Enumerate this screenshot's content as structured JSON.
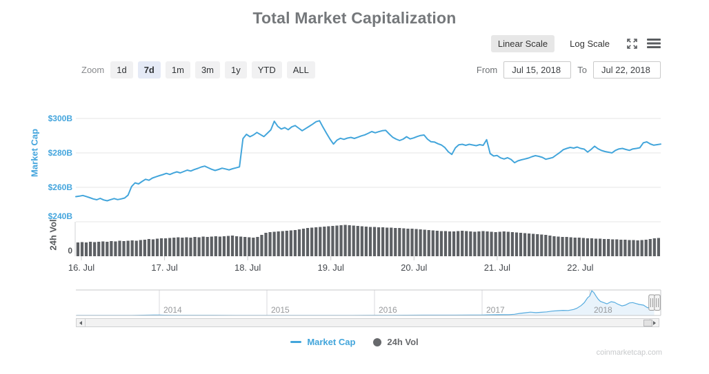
{
  "title": "Total Market Capitalization",
  "toolbar": {
    "linear_scale": "Linear Scale",
    "log_scale": "Log Scale"
  },
  "zoom_controls": {
    "label": "Zoom",
    "buttons": [
      {
        "label": "1d",
        "selected": false
      },
      {
        "label": "7d",
        "selected": true
      },
      {
        "label": "1m",
        "selected": false
      },
      {
        "label": "3m",
        "selected": false
      },
      {
        "label": "1y",
        "selected": false
      },
      {
        "label": "YTD",
        "selected": false
      },
      {
        "label": "ALL",
        "selected": false
      }
    ]
  },
  "range_selector": {
    "from_label": "From",
    "from_value": "Jul 15, 2018",
    "to_label": "To",
    "to_value": "Jul 22, 2018"
  },
  "legend": [
    {
      "label": "Market Cap",
      "color": "#42a5db",
      "marker": "line"
    },
    {
      "label": "24h Vol",
      "color": "#67696c",
      "marker": "circle"
    }
  ],
  "watermark": "coinmarketcap.com",
  "chart_data": {
    "type": "line",
    "title": "Total Market Capitalization",
    "x_ticks": [
      "16. Jul",
      "17. Jul",
      "18. Jul",
      "19. Jul",
      "20. Jul",
      "21. Jul",
      "22. Jul"
    ],
    "panes": [
      {
        "type": "line",
        "name": "Market Cap",
        "ylabel": "Market Cap",
        "color": "#42a5db",
        "unit": "$B",
        "ylim": [
          240,
          305
        ],
        "y_ticks": [
          {
            "label": "$300B",
            "value": 300
          },
          {
            "label": "$280B",
            "value": 280
          },
          {
            "label": "$260B",
            "value": 260
          },
          {
            "label": "$240B",
            "value": 240
          }
        ],
        "points_per_day": 24,
        "values": [
          254.6,
          254.9,
          255.3,
          254.7,
          254.0,
          253.3,
          252.8,
          253.6,
          252.7,
          252.2,
          252.9,
          253.5,
          252.9,
          253.3,
          253.8,
          255.5,
          260.5,
          262.6,
          262.0,
          263.4,
          264.7,
          264.1,
          265.4,
          266.1,
          266.8,
          267.4,
          268.1,
          267.5,
          268.3,
          269.0,
          268.4,
          269.2,
          270.0,
          269.5,
          270.3,
          271.0,
          271.8,
          272.3,
          271.4,
          270.5,
          269.8,
          270.4,
          271.1,
          270.7,
          270.1,
          270.8,
          271.3,
          271.9,
          288.3,
          290.8,
          289.4,
          290.4,
          291.9,
          290.7,
          289.5,
          291.4,
          293.4,
          298.4,
          295.4,
          293.9,
          294.7,
          293.5,
          295.1,
          295.9,
          294.4,
          292.9,
          294.1,
          295.4,
          296.7,
          298.1,
          298.7,
          294.9,
          291.4,
          288.0,
          285.1,
          287.4,
          288.5,
          287.9,
          288.6,
          289.0,
          288.4,
          289.1,
          289.9,
          290.5,
          291.4,
          292.4,
          291.7,
          292.3,
          292.9,
          293.1,
          291.0,
          289.1,
          288.0,
          287.2,
          288.0,
          289.4,
          288.1,
          288.7,
          289.5,
          290.1,
          290.4,
          288.0,
          286.5,
          286.3,
          285.3,
          284.6,
          283.1,
          280.6,
          279.1,
          282.9,
          284.7,
          285.0,
          284.4,
          285.0,
          284.6,
          284.2,
          284.8,
          284.4,
          287.7,
          279.6,
          278.2,
          278.5,
          277.1,
          276.5,
          277.2,
          276.2,
          274.3,
          275.4,
          276.0,
          276.5,
          277.0,
          277.8,
          278.4,
          278.0,
          277.4,
          276.3,
          276.8,
          277.3,
          278.8,
          280.2,
          281.9,
          282.6,
          283.2,
          282.8,
          283.4,
          282.6,
          282.2,
          280.5,
          282.0,
          283.9,
          282.4,
          281.4,
          280.8,
          280.4,
          280.0,
          281.5,
          282.3,
          282.6,
          282.0,
          281.5,
          282.3,
          282.6,
          283.0,
          285.9,
          286.4,
          285.2,
          284.5,
          284.8,
          285.1
        ]
      },
      {
        "type": "bar",
        "name": "24h Vol",
        "ylabel": "24h Vol",
        "color": "#5d6064",
        "unit": "$B",
        "ylim": [
          0,
          20
        ],
        "y_ticks": [
          {
            "label": "0",
            "value": 0
          }
        ],
        "values": [
          8.0,
          8.2,
          8.0,
          8.4,
          8.2,
          8.4,
          8.6,
          8.4,
          8.8,
          8.6,
          9.0,
          8.8,
          9.0,
          9.2,
          9.0,
          9.4,
          9.6,
          10.0,
          9.8,
          10.2,
          10.4,
          10.4,
          10.6,
          10.8,
          11.0,
          10.8,
          11.0,
          10.8,
          11.2,
          11.0,
          11.4,
          11.2,
          11.4,
          11.6,
          11.4,
          11.6,
          11.8,
          12.0,
          11.6,
          11.4,
          11.2,
          11.0,
          10.8,
          11.2,
          12.4,
          13.6,
          14.0,
          14.2,
          14.4,
          14.6,
          14.8,
          15.0,
          15.2,
          15.6,
          16.0,
          16.4,
          16.6,
          16.8,
          17.0,
          17.2,
          17.4,
          17.6,
          17.8,
          18.0,
          18.2,
          18.0,
          17.8,
          17.6,
          17.4,
          17.2,
          17.0,
          17.0,
          16.8,
          16.8,
          16.6,
          16.6,
          16.4,
          16.4,
          16.2,
          16.0,
          16.0,
          15.8,
          15.6,
          15.4,
          15.2,
          15.0,
          14.8,
          14.6,
          14.6,
          14.4,
          14.4,
          14.6,
          14.8,
          14.6,
          14.4,
          14.2,
          14.4,
          14.6,
          14.4,
          14.2,
          14.0,
          14.2,
          14.4,
          14.2,
          14.0,
          13.8,
          13.6,
          13.4,
          13.2,
          13.0,
          12.8,
          12.6,
          12.4,
          12.0,
          11.6,
          11.4,
          11.2,
          11.2,
          11.0,
          10.8,
          10.8,
          10.6,
          10.4,
          10.4,
          10.2,
          10.2,
          10.0,
          10.0,
          9.8,
          9.8,
          9.6,
          9.6,
          9.4,
          9.4,
          9.2,
          9.4,
          9.6,
          10.0,
          10.4,
          10.6
        ]
      }
    ],
    "navigator": {
      "type": "area",
      "line_color": "#55abdf",
      "fill_color": "#e9f3fb",
      "year_ticks": [
        "2014",
        "2015",
        "2016",
        "2017",
        "2018"
      ],
      "ymax": 830,
      "points": [
        [
          2013.23,
          2
        ],
        [
          2013.4,
          1.5
        ],
        [
          2013.6,
          2
        ],
        [
          2013.75,
          3
        ],
        [
          2013.85,
          10
        ],
        [
          2013.95,
          15
        ],
        [
          2014.0,
          13
        ],
        [
          2014.05,
          10
        ],
        [
          2014.15,
          8
        ],
        [
          2014.3,
          7
        ],
        [
          2014.5,
          6.5
        ],
        [
          2014.7,
          5.5
        ],
        [
          2014.9,
          5
        ],
        [
          2015.0,
          4.5
        ],
        [
          2015.1,
          3.8
        ],
        [
          2015.25,
          4.2
        ],
        [
          2015.4,
          4
        ],
        [
          2015.6,
          4.5
        ],
        [
          2015.8,
          5
        ],
        [
          2015.95,
          6.5
        ],
        [
          2016.0,
          7
        ],
        [
          2016.15,
          8
        ],
        [
          2016.3,
          9
        ],
        [
          2016.45,
          11
        ],
        [
          2016.6,
          12
        ],
        [
          2016.75,
          12.5
        ],
        [
          2016.9,
          14
        ],
        [
          2017.0,
          17
        ],
        [
          2017.05,
          20
        ],
        [
          2017.15,
          25
        ],
        [
          2017.25,
          28
        ],
        [
          2017.3,
          40
        ],
        [
          2017.35,
          70
        ],
        [
          2017.4,
          90
        ],
        [
          2017.45,
          110
        ],
        [
          2017.5,
          95
        ],
        [
          2017.55,
          105
        ],
        [
          2017.6,
          120
        ],
        [
          2017.65,
          145
        ],
        [
          2017.7,
          160
        ],
        [
          2017.75,
          170
        ],
        [
          2017.8,
          165
        ],
        [
          2017.85,
          200
        ],
        [
          2017.88,
          240
        ],
        [
          2017.92,
          330
        ],
        [
          2017.95,
          430
        ],
        [
          2017.98,
          590
        ],
        [
          2018.0,
          650
        ],
        [
          2018.02,
          830
        ],
        [
          2018.04,
          760
        ],
        [
          2018.06,
          640
        ],
        [
          2018.08,
          540
        ],
        [
          2018.1,
          470
        ],
        [
          2018.13,
          430
        ],
        [
          2018.16,
          390
        ],
        [
          2018.2,
          460
        ],
        [
          2018.23,
          440
        ],
        [
          2018.26,
          380
        ],
        [
          2018.3,
          320
        ],
        [
          2018.33,
          345
        ],
        [
          2018.37,
          420
        ],
        [
          2018.4,
          430
        ],
        [
          2018.43,
          400
        ],
        [
          2018.46,
          370
        ],
        [
          2018.5,
          345
        ],
        [
          2018.52,
          300
        ],
        [
          2018.54,
          255
        ],
        [
          2018.56,
          275
        ],
        [
          2018.58,
          290
        ],
        [
          2018.6,
          285
        ]
      ]
    }
  }
}
